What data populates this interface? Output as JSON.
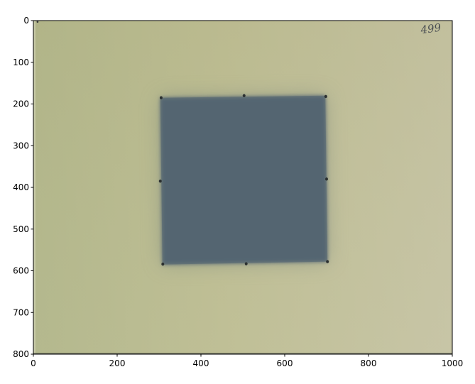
{
  "chart_data": {
    "type": "heatmap",
    "title": "",
    "xlabel": "",
    "ylabel": "",
    "xlim": [
      0,
      1000
    ],
    "ylim": [
      800,
      0
    ],
    "x_ticks": [
      0,
      200,
      400,
      600,
      800,
      1000
    ],
    "y_ticks": [
      0,
      100,
      200,
      300,
      400,
      500,
      600,
      700,
      800
    ],
    "x_tick_labels": [
      "0",
      "200",
      "400",
      "600",
      "800",
      "1000"
    ],
    "y_tick_labels": [
      "0",
      "100",
      "200",
      "300",
      "400",
      "500",
      "600",
      "700",
      "800"
    ],
    "grid": false,
    "image": {
      "description_color_background": "#bdbb8e",
      "description_color_square": "#556572",
      "dark_square": {
        "corners": [
          [
            303,
            185
          ],
          [
            697,
            180
          ],
          [
            702,
            578
          ],
          [
            308,
            585
          ]
        ]
      },
      "marker_dots": [
        [
          305,
          185
        ],
        [
          503,
          180
        ],
        [
          698,
          182
        ],
        [
          303,
          385
        ],
        [
          700,
          380
        ],
        [
          309,
          584
        ],
        [
          508,
          583
        ],
        [
          702,
          578
        ]
      ],
      "handwritten_label": "499"
    }
  },
  "colors": {
    "background_left": "#b0b589",
    "background_right": "#c4c3a4",
    "square_fill": "#546572",
    "dot": "#2b3030"
  }
}
